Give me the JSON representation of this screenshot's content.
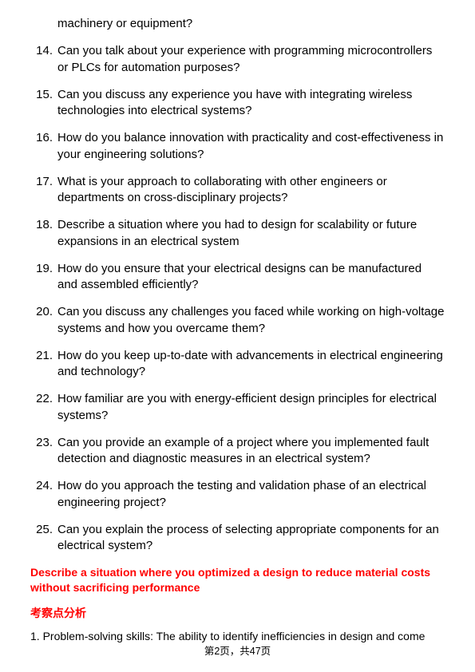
{
  "continuation": "machinery or equipment?",
  "questions": [
    "Can you talk about your experience with programming microcontrollers or PLCs for automation purposes?",
    "Can you discuss any experience you have with integrating wireless technologies into electrical systems?",
    "How do you balance innovation with practicality and cost-effectiveness in your engineering solutions?",
    "What is your approach to collaborating with other engineers or departments on cross-disciplinary projects?",
    "Describe a situation where you had to design for scalability or future expansions in an electrical system",
    "How do you ensure that your electrical designs can be manufactured and assembled efficiently?",
    "Can you discuss any challenges you faced while working on high-voltage systems and how you overcame them?",
    "How do you keep up-to-date with advancements in electrical engineering and technology?",
    "How familiar are you with energy-efficient design principles for electrical systems?",
    "Can you provide an example of a project where you implemented fault detection and diagnostic measures in an electrical system?",
    "How do you approach the testing and validation phase of an electrical engineering project?",
    "Can you explain the process of selecting appropriate components for an electrical system?"
  ],
  "prompt": "Describe a situation where you optimized a design to reduce material costs without sacrificing performance",
  "sectionLabel": "考察点分析",
  "analysisItem": "1. Problem-solving skills: The ability to identify inefficiencies in design and come",
  "footer": "第2页，共47页"
}
